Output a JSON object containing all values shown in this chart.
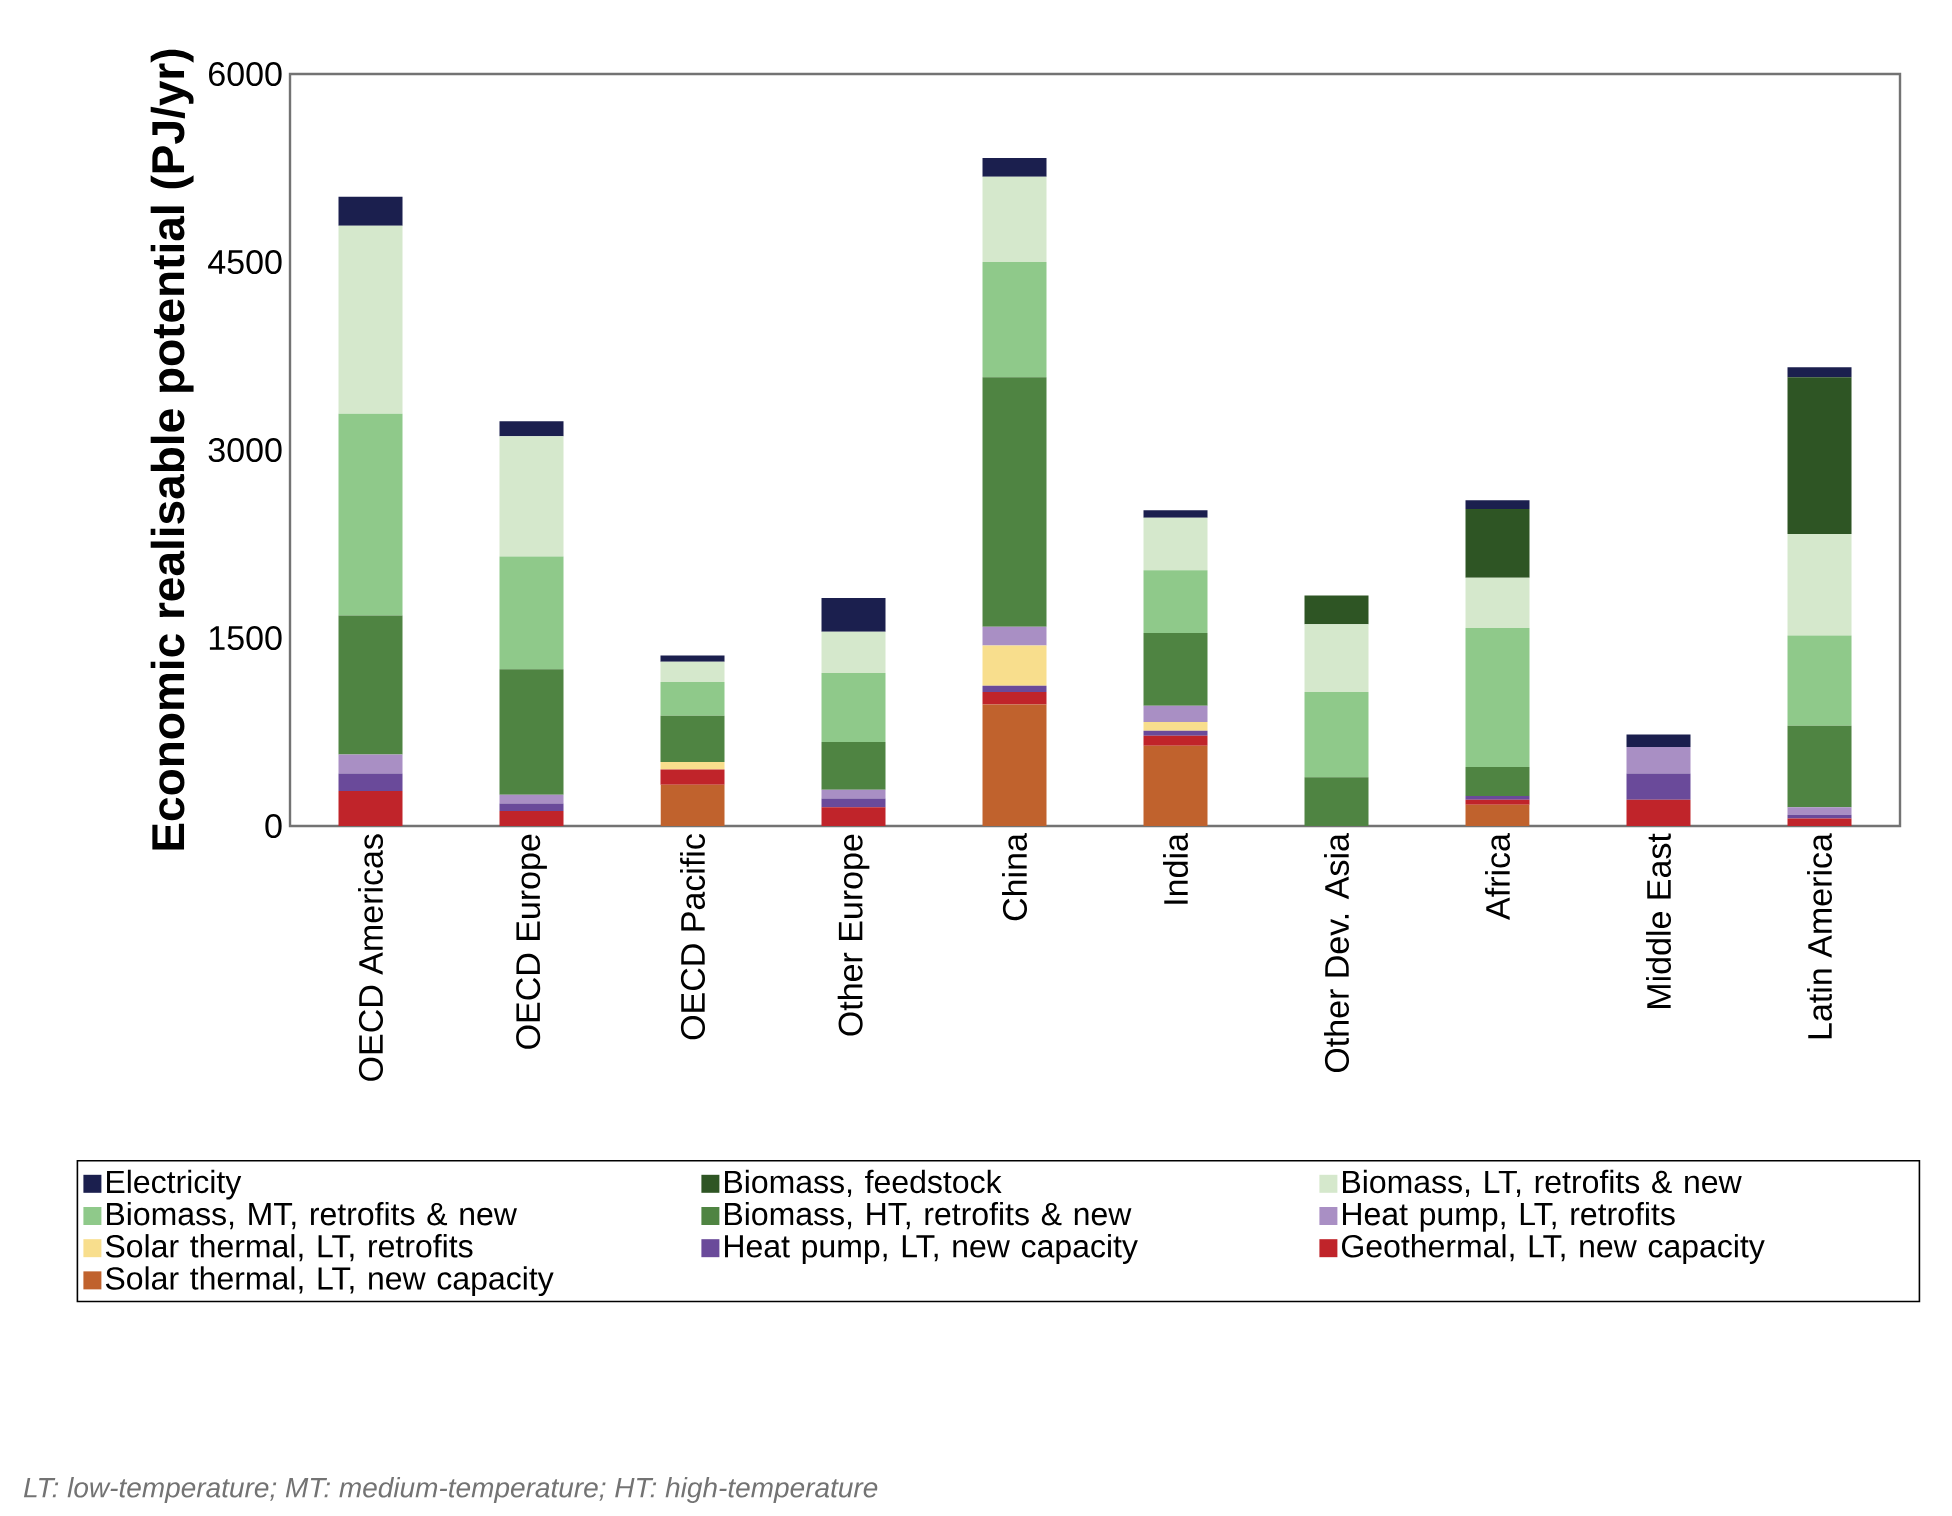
{
  "chart_data": {
    "type": "bar",
    "stacked": true,
    "ylabel": "Economic realisable potential (PJ/yr)",
    "categories": [
      "OECD Americas",
      "OECD Europe",
      "OECD Pacific",
      "Other Europe",
      "China",
      "India",
      "Other Dev. Asia",
      "Africa",
      "Middle East",
      "Latin America"
    ],
    "ylim": [
      0,
      6000
    ],
    "yticks": [
      0,
      1500,
      3000,
      4500,
      6000
    ],
    "legend": "bottom",
    "series": [
      {
        "name": "Solar thermal, LT, new capacity",
        "color": "#c0622d",
        "values": [
          0,
          0,
          330,
          0,
          970,
          640,
          0,
          170,
          0,
          0
        ]
      },
      {
        "name": "Geothermal, LT, new capacity",
        "color": "#c0242a",
        "values": [
          280,
          120,
          120,
          150,
          100,
          80,
          0,
          40,
          210,
          60
        ]
      },
      {
        "name": "Heat pump, LT, new capacity",
        "color": "#6a4a9a",
        "values": [
          140,
          60,
          0,
          70,
          50,
          40,
          0,
          30,
          210,
          30
        ]
      },
      {
        "name": "Solar thermal, LT, retrofits",
        "color": "#f8de8d",
        "values": [
          0,
          0,
          60,
          0,
          320,
          70,
          0,
          0,
          0,
          0
        ]
      },
      {
        "name": "Heat pump, LT, retrofits",
        "color": "#a98fc4",
        "values": [
          150,
          70,
          0,
          70,
          150,
          130,
          0,
          0,
          210,
          60
        ]
      },
      {
        "name": "Biomass, HT, retrofits & new",
        "color": "#4f8442",
        "values": [
          1110,
          1000,
          370,
          380,
          1990,
          580,
          390,
          230,
          0,
          650
        ]
      },
      {
        "name": "Biomass, MT, retrofits & new",
        "color": "#8fc98a",
        "values": [
          1610,
          900,
          270,
          550,
          920,
          500,
          680,
          1110,
          0,
          720
        ]
      },
      {
        "name": "Biomass, LT, retrofits & new",
        "color": "#d5e8cc",
        "values": [
          1500,
          960,
          160,
          330,
          680,
          420,
          540,
          400,
          0,
          810
        ]
      },
      {
        "name": "Biomass, feedstock",
        "color": "#2e5524",
        "values": [
          0,
          0,
          0,
          0,
          0,
          0,
          230,
          550,
          0,
          1250
        ]
      },
      {
        "name": "Electricity",
        "color": "#1b1f4e",
        "values": [
          230,
          120,
          50,
          270,
          150,
          60,
          0,
          70,
          100,
          80
        ]
      }
    ],
    "annotations": [
      "LT: low-temperature; MT: medium-temperature; HT: high-temperature"
    ]
  }
}
